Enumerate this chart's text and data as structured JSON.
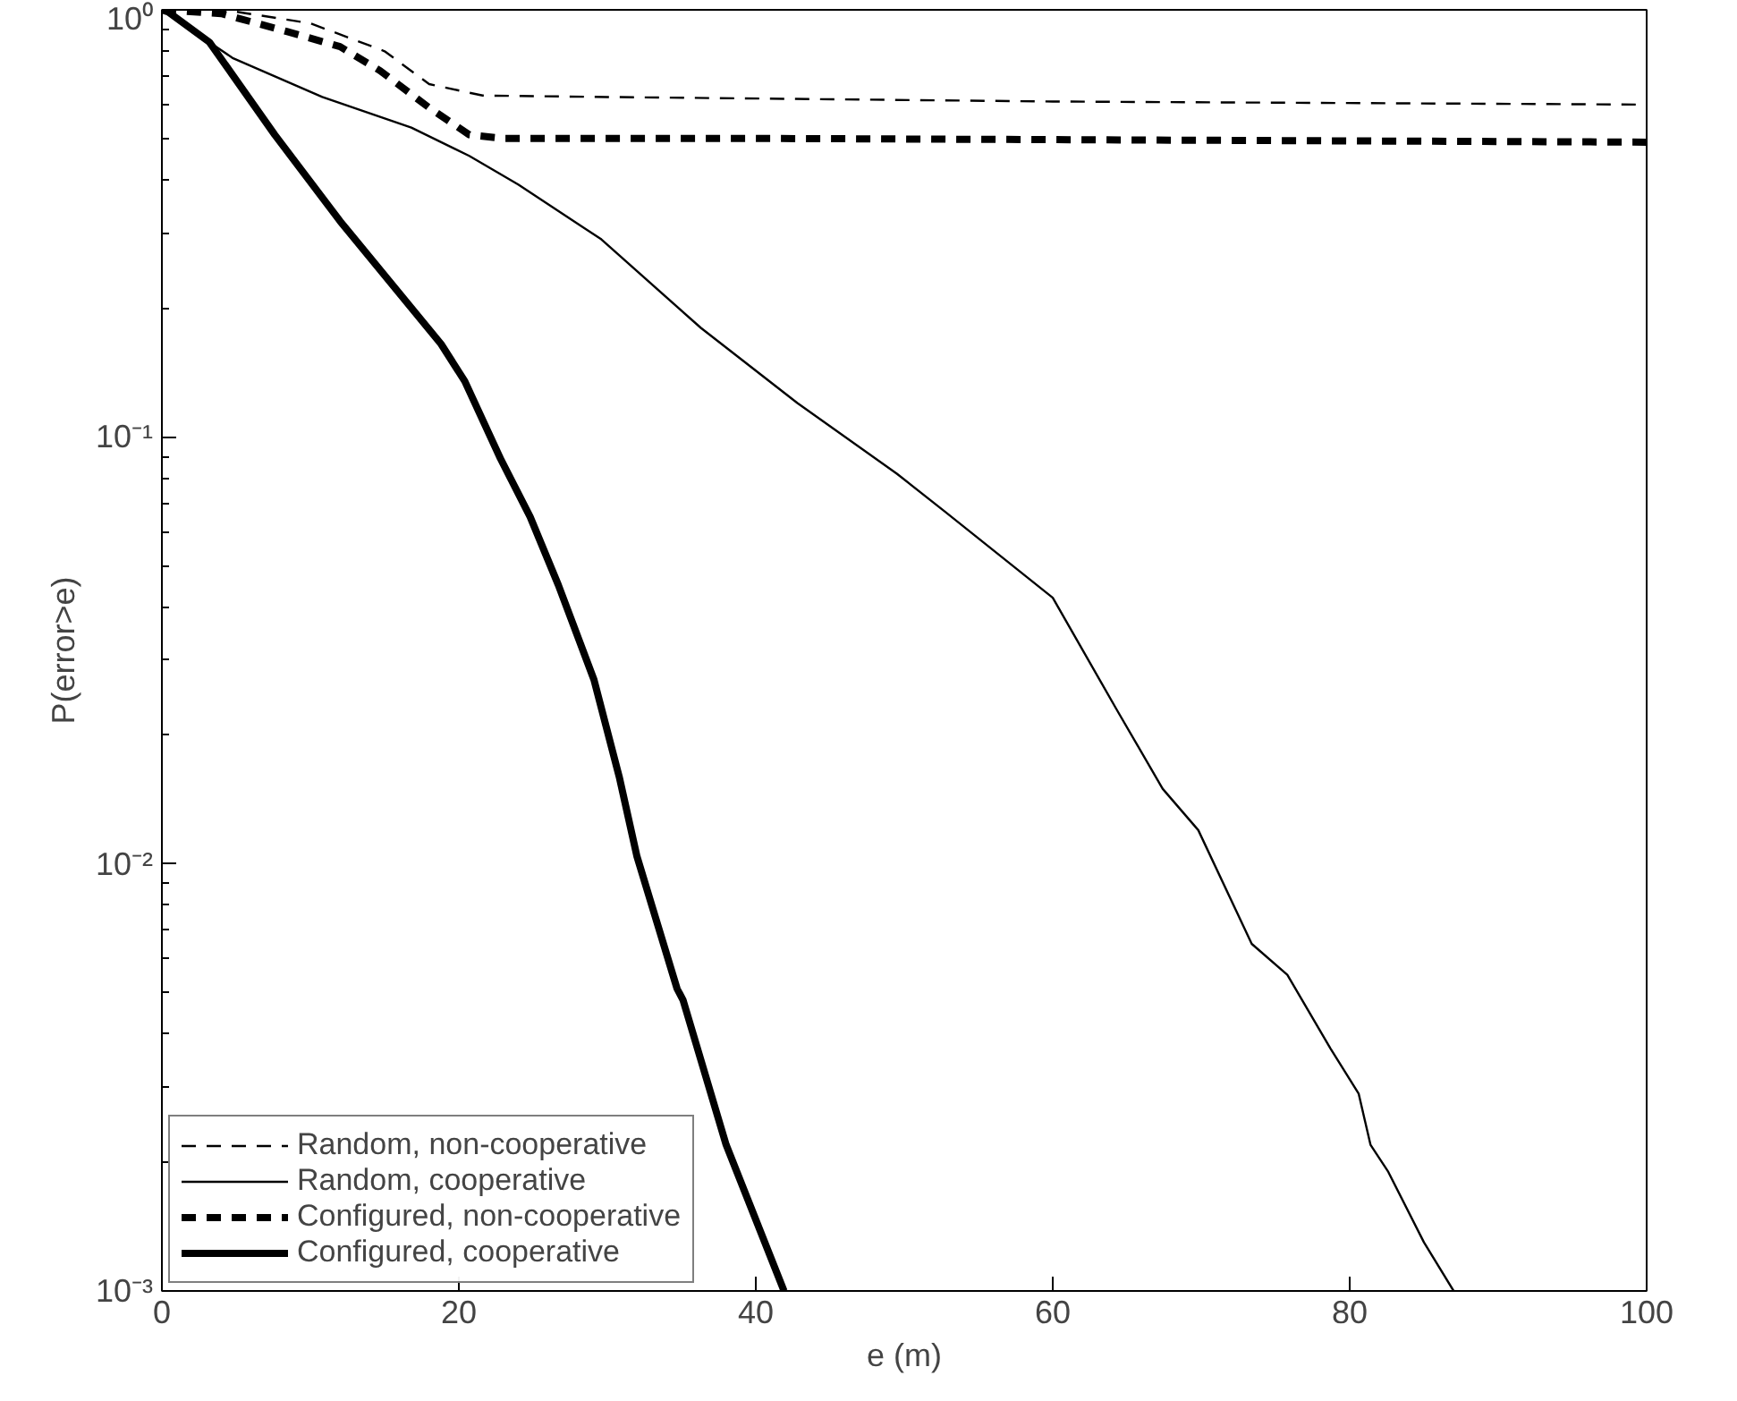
{
  "chart_data": {
    "type": "line",
    "xlabel": "e (m)",
    "ylabel": "P(error>e)",
    "log": "y",
    "grid": false,
    "legend": "bottom left",
    "marker": "none",
    "xlim": [
      0,
      100
    ],
    "xticks": [
      0,
      20,
      40,
      60,
      80,
      100
    ],
    "ylim": [
      0.001,
      1
    ],
    "yticks": [
      {
        "value": 0.001,
        "label": "10⁻³"
      },
      {
        "value": 0.01,
        "label": "10⁻²"
      },
      {
        "value": 0.1,
        "label": "10⁻¹"
      },
      {
        "value": 1,
        "label": "10⁰"
      }
    ],
    "series": [
      {
        "name": "Random, non-cooperative",
        "color": "#000000",
        "line_style": "dashed",
        "x": [
          0,
          5,
          10,
          15,
          18,
          21.6,
          30,
          60,
          100
        ],
        "values": [
          1,
          0.99,
          0.93,
          0.8,
          0.67,
          0.63,
          0.625,
          0.61,
          0.6
        ]
      },
      {
        "name": "Random, cooperative",
        "color": "#000000",
        "line_style": "solid",
        "x": [
          0,
          3.2,
          4.8,
          10.8,
          16.8,
          20.7,
          24,
          29.6,
          36.3,
          42.8,
          49.5,
          52.7,
          60,
          64.3,
          67.4,
          69.8,
          73.4,
          75.8,
          78.7,
          80.6,
          81.4,
          82.6,
          85,
          87
        ],
        "values": [
          1,
          0.84,
          0.77,
          0.625,
          0.53,
          0.455,
          0.39,
          0.29,
          0.18,
          0.12,
          0.082,
          0.067,
          0.042,
          0.023,
          0.015,
          0.012,
          0.0065,
          0.0055,
          0.0037,
          0.0029,
          0.0022,
          0.0019,
          0.0013,
          0.001
        ]
      },
      {
        "name": "Configured, non-cooperative",
        "color": "#000000",
        "line_style": "dashed",
        "x": [
          0,
          4,
          8.4,
          12,
          14.7,
          18,
          20.7,
          23,
          40,
          70,
          100
        ],
        "values": [
          1,
          0.98,
          0.89,
          0.82,
          0.72,
          0.59,
          0.51,
          0.5,
          0.5,
          0.495,
          0.49
        ]
      },
      {
        "name": "Configured, cooperative",
        "color": "#000000",
        "line_style": "solid",
        "x": [
          0,
          0.4,
          3.2,
          7.6,
          12,
          18.8,
          20.4,
          22.8,
          24.8,
          26.7,
          29.1,
          30.8,
          32,
          34.7,
          35.1,
          38,
          41.9
        ],
        "values": [
          1,
          0.99,
          0.84,
          0.51,
          0.32,
          0.165,
          0.135,
          0.089,
          0.065,
          0.045,
          0.027,
          0.016,
          0.0104,
          0.0051,
          0.0048,
          0.0022,
          0.001
        ]
      }
    ]
  }
}
